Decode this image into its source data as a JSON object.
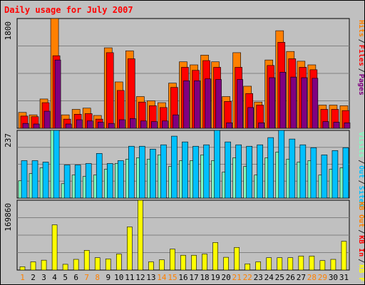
{
  "title": "Daily usage for July 2007",
  "chart_data": {
    "type": "bar",
    "title": "Daily usage for July 2007",
    "categories": [
      "1",
      "2",
      "3",
      "4",
      "5",
      "6",
      "7",
      "8",
      "9",
      "10",
      "11",
      "12",
      "13",
      "14",
      "15",
      "16",
      "17",
      "18",
      "19",
      "20",
      "21",
      "22",
      "23",
      "24",
      "25",
      "26",
      "27",
      "28",
      "29",
      "30",
      "31"
    ],
    "weekend_days": [
      "1",
      "7",
      "8",
      "14",
      "15",
      "21",
      "22",
      "28",
      "29"
    ],
    "panels": [
      {
        "top_label": "1800",
        "legend": [
          {
            "name": "Pages",
            "color": "#800080"
          },
          {
            "name": "Files",
            "color": "#ff0000"
          },
          {
            "name": "Hits",
            "color": "#ff8000"
          }
        ],
        "series": [
          {
            "name": "Hits",
            "color": "#ff8000",
            "values": [
              260,
              220,
              480,
              1800,
              220,
              310,
              330,
              210,
              1320,
              760,
              1270,
              520,
              450,
              420,
              740,
              1090,
              1040,
              1200,
              1090,
              520,
              1240,
              690,
              430,
              1120,
              1600,
              1260,
              1100,
              1040,
              380,
              380,
              370
            ]
          },
          {
            "name": "Files",
            "color": "#ff0000",
            "values": [
              200,
              190,
              420,
              1190,
              150,
              230,
              240,
              150,
              1240,
              620,
              1140,
              430,
              370,
              340,
              670,
              1000,
              950,
              1110,
              1000,
              440,
              1000,
              570,
              380,
              1030,
              1410,
              1140,
              1000,
              960,
              310,
              310,
              290
            ]
          },
          {
            "name": "Pages",
            "color": "#800080",
            "values": [
              80,
              70,
              280,
              1120,
              70,
              140,
              120,
              100,
              80,
              140,
              160,
              120,
              110,
              120,
              220,
              780,
              780,
              810,
              800,
              90,
              800,
              340,
              90,
              830,
              920,
              840,
              830,
              820,
              110,
              100,
              90
            ]
          }
        ]
      },
      {
        "top_label": "237",
        "legend": [
          {
            "name": "Sites",
            "color": "#00c0ff"
          },
          {
            "name": "Out",
            "color": "#00c0ff"
          },
          {
            "name": "Visits",
            "color": "#80ffc0"
          }
        ],
        "series": [
          {
            "name": "Visits",
            "color": "#80ffc0",
            "values": [
              60,
              85,
              105,
              235,
              50,
              80,
              75,
              80,
              100,
              120,
              135,
              140,
              135,
              150,
              110,
              130,
              130,
              150,
              130,
              90,
              140,
              110,
              80,
              140,
              160,
              135,
              125,
              130,
              80,
              100,
              105
            ]
          },
          {
            "name": "Sites",
            "color": "#00c0ff",
            "values": [
              130,
              130,
              125,
              235,
              115,
              115,
              120,
              155,
              120,
              130,
              180,
              180,
              170,
              185,
              215,
              195,
              180,
              185,
              235,
              195,
              185,
              180,
              185,
              210,
              235,
              205,
              185,
              175,
              150,
              165,
              175
            ]
          }
        ]
      },
      {
        "top_label": "169860",
        "legend": [
          {
            "name": "KB F",
            "color": "#ffff00"
          },
          {
            "name": "KB In",
            "color": "#ff0000"
          },
          {
            "name": "KB Out",
            "color": "#ff8000"
          }
        ],
        "series": [
          {
            "name": "KB F",
            "color": "#ffff00",
            "values": [
              8000,
              20000,
              24000,
              110000,
              14000,
              26000,
              48000,
              30000,
              27000,
              39000,
              105000,
              169860,
              20000,
              25000,
              51000,
              36000,
              36000,
              39000,
              67000,
              31000,
              55000,
              15000,
              20000,
              30000,
              30000,
              30000,
              34000,
              34000,
              23000,
              26000,
              70000
            ]
          }
        ]
      }
    ]
  }
}
